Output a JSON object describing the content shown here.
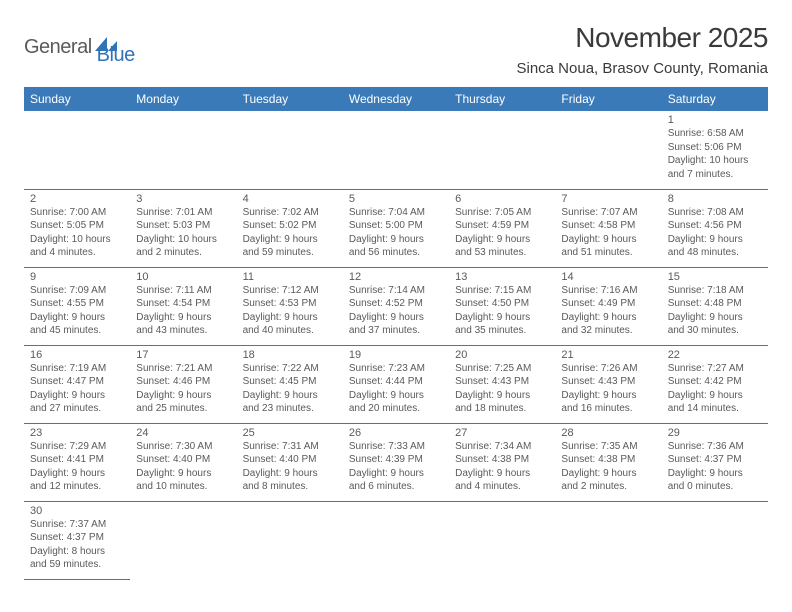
{
  "logo": {
    "general": "General",
    "blue": "Blue"
  },
  "title": "November 2025",
  "location": "Sinca Noua, Brasov County, Romania",
  "colors": {
    "header_bg": "#3a7ab8",
    "header_text": "#ffffff",
    "border": "#3a7ab8",
    "text": "#5a5a5a",
    "title_text": "#3a3a3a",
    "logo_blue": "#2f73b8"
  },
  "day_headers": [
    "Sunday",
    "Monday",
    "Tuesday",
    "Wednesday",
    "Thursday",
    "Friday",
    "Saturday"
  ],
  "weeks": [
    [
      null,
      null,
      null,
      null,
      null,
      null,
      {
        "n": "1",
        "sr": "Sunrise: 6:58 AM",
        "ss": "Sunset: 5:06 PM",
        "d1": "Daylight: 10 hours",
        "d2": "and 7 minutes."
      }
    ],
    [
      {
        "n": "2",
        "sr": "Sunrise: 7:00 AM",
        "ss": "Sunset: 5:05 PM",
        "d1": "Daylight: 10 hours",
        "d2": "and 4 minutes."
      },
      {
        "n": "3",
        "sr": "Sunrise: 7:01 AM",
        "ss": "Sunset: 5:03 PM",
        "d1": "Daylight: 10 hours",
        "d2": "and 2 minutes."
      },
      {
        "n": "4",
        "sr": "Sunrise: 7:02 AM",
        "ss": "Sunset: 5:02 PM",
        "d1": "Daylight: 9 hours",
        "d2": "and 59 minutes."
      },
      {
        "n": "5",
        "sr": "Sunrise: 7:04 AM",
        "ss": "Sunset: 5:00 PM",
        "d1": "Daylight: 9 hours",
        "d2": "and 56 minutes."
      },
      {
        "n": "6",
        "sr": "Sunrise: 7:05 AM",
        "ss": "Sunset: 4:59 PM",
        "d1": "Daylight: 9 hours",
        "d2": "and 53 minutes."
      },
      {
        "n": "7",
        "sr": "Sunrise: 7:07 AM",
        "ss": "Sunset: 4:58 PM",
        "d1": "Daylight: 9 hours",
        "d2": "and 51 minutes."
      },
      {
        "n": "8",
        "sr": "Sunrise: 7:08 AM",
        "ss": "Sunset: 4:56 PM",
        "d1": "Daylight: 9 hours",
        "d2": "and 48 minutes."
      }
    ],
    [
      {
        "n": "9",
        "sr": "Sunrise: 7:09 AM",
        "ss": "Sunset: 4:55 PM",
        "d1": "Daylight: 9 hours",
        "d2": "and 45 minutes."
      },
      {
        "n": "10",
        "sr": "Sunrise: 7:11 AM",
        "ss": "Sunset: 4:54 PM",
        "d1": "Daylight: 9 hours",
        "d2": "and 43 minutes."
      },
      {
        "n": "11",
        "sr": "Sunrise: 7:12 AM",
        "ss": "Sunset: 4:53 PM",
        "d1": "Daylight: 9 hours",
        "d2": "and 40 minutes."
      },
      {
        "n": "12",
        "sr": "Sunrise: 7:14 AM",
        "ss": "Sunset: 4:52 PM",
        "d1": "Daylight: 9 hours",
        "d2": "and 37 minutes."
      },
      {
        "n": "13",
        "sr": "Sunrise: 7:15 AM",
        "ss": "Sunset: 4:50 PM",
        "d1": "Daylight: 9 hours",
        "d2": "and 35 minutes."
      },
      {
        "n": "14",
        "sr": "Sunrise: 7:16 AM",
        "ss": "Sunset: 4:49 PM",
        "d1": "Daylight: 9 hours",
        "d2": "and 32 minutes."
      },
      {
        "n": "15",
        "sr": "Sunrise: 7:18 AM",
        "ss": "Sunset: 4:48 PM",
        "d1": "Daylight: 9 hours",
        "d2": "and 30 minutes."
      }
    ],
    [
      {
        "n": "16",
        "sr": "Sunrise: 7:19 AM",
        "ss": "Sunset: 4:47 PM",
        "d1": "Daylight: 9 hours",
        "d2": "and 27 minutes."
      },
      {
        "n": "17",
        "sr": "Sunrise: 7:21 AM",
        "ss": "Sunset: 4:46 PM",
        "d1": "Daylight: 9 hours",
        "d2": "and 25 minutes."
      },
      {
        "n": "18",
        "sr": "Sunrise: 7:22 AM",
        "ss": "Sunset: 4:45 PM",
        "d1": "Daylight: 9 hours",
        "d2": "and 23 minutes."
      },
      {
        "n": "19",
        "sr": "Sunrise: 7:23 AM",
        "ss": "Sunset: 4:44 PM",
        "d1": "Daylight: 9 hours",
        "d2": "and 20 minutes."
      },
      {
        "n": "20",
        "sr": "Sunrise: 7:25 AM",
        "ss": "Sunset: 4:43 PM",
        "d1": "Daylight: 9 hours",
        "d2": "and 18 minutes."
      },
      {
        "n": "21",
        "sr": "Sunrise: 7:26 AM",
        "ss": "Sunset: 4:43 PM",
        "d1": "Daylight: 9 hours",
        "d2": "and 16 minutes."
      },
      {
        "n": "22",
        "sr": "Sunrise: 7:27 AM",
        "ss": "Sunset: 4:42 PM",
        "d1": "Daylight: 9 hours",
        "d2": "and 14 minutes."
      }
    ],
    [
      {
        "n": "23",
        "sr": "Sunrise: 7:29 AM",
        "ss": "Sunset: 4:41 PM",
        "d1": "Daylight: 9 hours",
        "d2": "and 12 minutes."
      },
      {
        "n": "24",
        "sr": "Sunrise: 7:30 AM",
        "ss": "Sunset: 4:40 PM",
        "d1": "Daylight: 9 hours",
        "d2": "and 10 minutes."
      },
      {
        "n": "25",
        "sr": "Sunrise: 7:31 AM",
        "ss": "Sunset: 4:40 PM",
        "d1": "Daylight: 9 hours",
        "d2": "and 8 minutes."
      },
      {
        "n": "26",
        "sr": "Sunrise: 7:33 AM",
        "ss": "Sunset: 4:39 PM",
        "d1": "Daylight: 9 hours",
        "d2": "and 6 minutes."
      },
      {
        "n": "27",
        "sr": "Sunrise: 7:34 AM",
        "ss": "Sunset: 4:38 PM",
        "d1": "Daylight: 9 hours",
        "d2": "and 4 minutes."
      },
      {
        "n": "28",
        "sr": "Sunrise: 7:35 AM",
        "ss": "Sunset: 4:38 PM",
        "d1": "Daylight: 9 hours",
        "d2": "and 2 minutes."
      },
      {
        "n": "29",
        "sr": "Sunrise: 7:36 AM",
        "ss": "Sunset: 4:37 PM",
        "d1": "Daylight: 9 hours",
        "d2": "and 0 minutes."
      }
    ],
    [
      {
        "n": "30",
        "sr": "Sunrise: 7:37 AM",
        "ss": "Sunset: 4:37 PM",
        "d1": "Daylight: 8 hours",
        "d2": "and 59 minutes."
      },
      null,
      null,
      null,
      null,
      null,
      null
    ]
  ]
}
